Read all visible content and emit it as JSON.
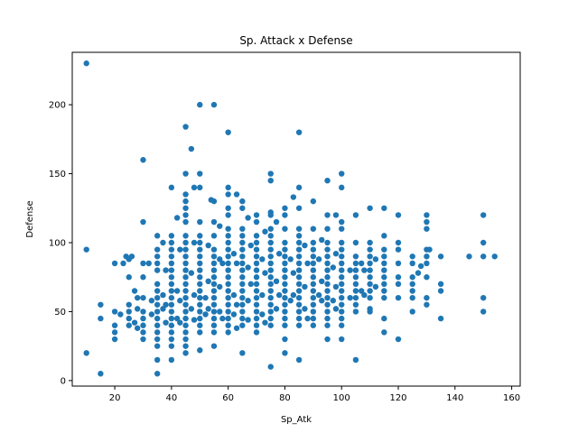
{
  "chart_data": {
    "type": "scatter",
    "title": "Sp. Attack x Defense",
    "xlabel": "Sp_Atk",
    "ylabel": "Defense",
    "xlim": [
      5,
      163
    ],
    "ylim": [
      -4,
      238
    ],
    "xticks": [
      20,
      40,
      60,
      80,
      100,
      120,
      140,
      160
    ],
    "yticks": [
      0,
      50,
      100,
      150,
      200
    ],
    "grid": false,
    "legend": "none",
    "color": "#1f77b4",
    "points": [
      [
        10,
        230
      ],
      [
        10,
        95
      ],
      [
        10,
        20
      ],
      [
        15,
        55
      ],
      [
        15,
        45
      ],
      [
        15,
        5
      ],
      [
        20,
        85
      ],
      [
        20,
        50
      ],
      [
        20,
        40
      ],
      [
        20,
        35
      ],
      [
        20,
        30
      ],
      [
        22,
        48
      ],
      [
        23,
        85
      ],
      [
        24,
        90
      ],
      [
        25,
        88
      ],
      [
        25,
        75
      ],
      [
        25,
        55
      ],
      [
        25,
        50
      ],
      [
        25,
        45
      ],
      [
        25,
        40
      ],
      [
        26,
        90
      ],
      [
        27,
        65
      ],
      [
        27,
        42
      ],
      [
        28,
        60
      ],
      [
        28,
        52
      ],
      [
        28,
        38
      ],
      [
        30,
        160
      ],
      [
        30,
        115
      ],
      [
        30,
        85
      ],
      [
        30,
        75
      ],
      [
        30,
        60
      ],
      [
        30,
        50
      ],
      [
        30,
        45
      ],
      [
        30,
        40
      ],
      [
        30,
        35
      ],
      [
        30,
        30
      ],
      [
        32,
        85
      ],
      [
        33,
        58
      ],
      [
        33,
        48
      ],
      [
        35,
        105
      ],
      [
        35,
        95
      ],
      [
        35,
        90
      ],
      [
        35,
        85
      ],
      [
        35,
        80
      ],
      [
        35,
        70
      ],
      [
        35,
        65
      ],
      [
        35,
        60
      ],
      [
        35,
        55
      ],
      [
        35,
        50
      ],
      [
        35,
        45
      ],
      [
        35,
        40
      ],
      [
        35,
        35
      ],
      [
        35,
        30
      ],
      [
        35,
        25
      ],
      [
        35,
        15
      ],
      [
        35,
        5
      ],
      [
        37,
        100
      ],
      [
        37,
        62
      ],
      [
        37,
        52
      ],
      [
        38,
        80
      ],
      [
        38,
        55
      ],
      [
        38,
        42
      ],
      [
        40,
        140
      ],
      [
        40,
        105
      ],
      [
        40,
        100
      ],
      [
        40,
        95
      ],
      [
        40,
        90
      ],
      [
        40,
        85
      ],
      [
        40,
        80
      ],
      [
        40,
        75
      ],
      [
        40,
        70
      ],
      [
        40,
        65
      ],
      [
        40,
        60
      ],
      [
        40,
        55
      ],
      [
        40,
        50
      ],
      [
        40,
        45
      ],
      [
        40,
        40
      ],
      [
        40,
        35
      ],
      [
        40,
        30
      ],
      [
        40,
        25
      ],
      [
        40,
        15
      ],
      [
        42,
        118
      ],
      [
        42,
        65
      ],
      [
        42,
        45
      ],
      [
        43,
        95
      ],
      [
        43,
        58
      ],
      [
        43,
        42
      ],
      [
        45,
        184
      ],
      [
        45,
        150
      ],
      [
        45,
        135
      ],
      [
        45,
        130
      ],
      [
        45,
        125
      ],
      [
        45,
        120
      ],
      [
        45,
        115
      ],
      [
        45,
        105
      ],
      [
        45,
        100
      ],
      [
        45,
        95
      ],
      [
        45,
        90
      ],
      [
        45,
        85
      ],
      [
        45,
        80
      ],
      [
        45,
        75
      ],
      [
        45,
        70
      ],
      [
        45,
        65
      ],
      [
        45,
        60
      ],
      [
        45,
        55
      ],
      [
        45,
        50
      ],
      [
        45,
        45
      ],
      [
        45,
        40
      ],
      [
        45,
        35
      ],
      [
        45,
        30
      ],
      [
        45,
        25
      ],
      [
        45,
        20
      ],
      [
        47,
        168
      ],
      [
        47,
        78
      ],
      [
        47,
        52
      ],
      [
        48,
        140
      ],
      [
        48,
        100
      ],
      [
        48,
        62
      ],
      [
        48,
        44
      ],
      [
        50,
        200
      ],
      [
        50,
        150
      ],
      [
        50,
        140
      ],
      [
        50,
        115
      ],
      [
        50,
        105
      ],
      [
        50,
        100
      ],
      [
        50,
        95
      ],
      [
        50,
        90
      ],
      [
        50,
        85
      ],
      [
        50,
        80
      ],
      [
        50,
        75
      ],
      [
        50,
        70
      ],
      [
        50,
        65
      ],
      [
        50,
        60
      ],
      [
        50,
        55
      ],
      [
        50,
        50
      ],
      [
        50,
        45
      ],
      [
        50,
        40
      ],
      [
        50,
        35
      ],
      [
        50,
        22
      ],
      [
        52,
        60
      ],
      [
        52,
        48
      ],
      [
        53,
        98
      ],
      [
        53,
        72
      ],
      [
        53,
        52
      ],
      [
        54,
        131
      ],
      [
        55,
        200
      ],
      [
        55,
        130
      ],
      [
        55,
        115
      ],
      [
        55,
        105
      ],
      [
        55,
        95
      ],
      [
        55,
        90
      ],
      [
        55,
        85
      ],
      [
        55,
        80
      ],
      [
        55,
        75
      ],
      [
        55,
        70
      ],
      [
        55,
        65
      ],
      [
        55,
        60
      ],
      [
        55,
        55
      ],
      [
        55,
        50
      ],
      [
        55,
        45
      ],
      [
        55,
        40
      ],
      [
        55,
        35
      ],
      [
        55,
        25
      ],
      [
        57,
        112
      ],
      [
        57,
        88
      ],
      [
        57,
        68
      ],
      [
        57,
        50
      ],
      [
        58,
        85
      ],
      [
        58,
        45
      ],
      [
        60,
        180
      ],
      [
        60,
        140
      ],
      [
        60,
        135
      ],
      [
        60,
        125
      ],
      [
        60,
        120
      ],
      [
        60,
        110
      ],
      [
        60,
        105
      ],
      [
        60,
        100
      ],
      [
        60,
        95
      ],
      [
        60,
        90
      ],
      [
        60,
        85
      ],
      [
        60,
        80
      ],
      [
        60,
        75
      ],
      [
        60,
        70
      ],
      [
        60,
        65
      ],
      [
        60,
        60
      ],
      [
        60,
        55
      ],
      [
        60,
        50
      ],
      [
        60,
        45
      ],
      [
        60,
        40
      ],
      [
        60,
        35
      ],
      [
        62,
        92
      ],
      [
        62,
        62
      ],
      [
        62,
        48
      ],
      [
        63,
        135
      ],
      [
        63,
        85
      ],
      [
        63,
        55
      ],
      [
        63,
        38
      ],
      [
        65,
        130
      ],
      [
        65,
        125
      ],
      [
        65,
        110
      ],
      [
        65,
        105
      ],
      [
        65,
        100
      ],
      [
        65,
        95
      ],
      [
        65,
        90
      ],
      [
        65,
        85
      ],
      [
        65,
        80
      ],
      [
        65,
        75
      ],
      [
        65,
        70
      ],
      [
        65,
        65
      ],
      [
        65,
        60
      ],
      [
        65,
        55
      ],
      [
        65,
        50
      ],
      [
        65,
        45
      ],
      [
        65,
        40
      ],
      [
        65,
        20
      ],
      [
        67,
        118
      ],
      [
        67,
        82
      ],
      [
        67,
        58
      ],
      [
        67,
        44
      ],
      [
        68,
        98
      ],
      [
        68,
        70
      ],
      [
        70,
        120
      ],
      [
        70,
        115
      ],
      [
        70,
        105
      ],
      [
        70,
        100
      ],
      [
        70,
        95
      ],
      [
        70,
        90
      ],
      [
        70,
        85
      ],
      [
        70,
        80
      ],
      [
        70,
        75
      ],
      [
        70,
        70
      ],
      [
        70,
        65
      ],
      [
        70,
        60
      ],
      [
        70,
        55
      ],
      [
        70,
        50
      ],
      [
        70,
        45
      ],
      [
        70,
        40
      ],
      [
        70,
        35
      ],
      [
        72,
        88
      ],
      [
        72,
        62
      ],
      [
        72,
        48
      ],
      [
        73,
        108
      ],
      [
        73,
        78
      ],
      [
        73,
        42
      ],
      [
        75,
        150
      ],
      [
        75,
        145
      ],
      [
        75,
        122
      ],
      [
        75,
        120
      ],
      [
        75,
        110
      ],
      [
        75,
        105
      ],
      [
        75,
        100
      ],
      [
        75,
        95
      ],
      [
        75,
        90
      ],
      [
        75,
        85
      ],
      [
        75,
        80
      ],
      [
        75,
        75
      ],
      [
        75,
        70
      ],
      [
        75,
        65
      ],
      [
        75,
        60
      ],
      [
        75,
        55
      ],
      [
        75,
        50
      ],
      [
        75,
        45
      ],
      [
        75,
        40
      ],
      [
        75,
        10
      ],
      [
        77,
        115
      ],
      [
        77,
        72
      ],
      [
        77,
        52
      ],
      [
        78,
        92
      ],
      [
        78,
        62
      ],
      [
        80,
        125
      ],
      [
        80,
        120
      ],
      [
        80,
        110
      ],
      [
        80,
        100
      ],
      [
        80,
        95
      ],
      [
        80,
        90
      ],
      [
        80,
        85
      ],
      [
        80,
        80
      ],
      [
        80,
        75
      ],
      [
        80,
        70
      ],
      [
        80,
        65
      ],
      [
        80,
        60
      ],
      [
        80,
        55
      ],
      [
        80,
        50
      ],
      [
        80,
        45
      ],
      [
        80,
        40
      ],
      [
        80,
        30
      ],
      [
        80,
        20
      ],
      [
        82,
        88
      ],
      [
        82,
        58
      ],
      [
        83,
        133
      ],
      [
        83,
        78
      ],
      [
        83,
        62
      ],
      [
        85,
        180
      ],
      [
        85,
        140
      ],
      [
        85,
        125
      ],
      [
        85,
        110
      ],
      [
        85,
        105
      ],
      [
        85,
        100
      ],
      [
        85,
        95
      ],
      [
        85,
        90
      ],
      [
        85,
        85
      ],
      [
        85,
        80
      ],
      [
        85,
        75
      ],
      [
        85,
        70
      ],
      [
        85,
        65
      ],
      [
        85,
        60
      ],
      [
        85,
        55
      ],
      [
        85,
        50
      ],
      [
        85,
        45
      ],
      [
        85,
        40
      ],
      [
        85,
        15
      ],
      [
        87,
        98
      ],
      [
        87,
        68
      ],
      [
        87,
        52
      ],
      [
        88,
        85
      ],
      [
        88,
        45
      ],
      [
        90,
        130
      ],
      [
        90,
        110
      ],
      [
        90,
        100
      ],
      [
        90,
        95
      ],
      [
        90,
        90
      ],
      [
        90,
        85
      ],
      [
        90,
        80
      ],
      [
        90,
        75
      ],
      [
        90,
        70
      ],
      [
        90,
        65
      ],
      [
        90,
        60
      ],
      [
        90,
        55
      ],
      [
        90,
        50
      ],
      [
        90,
        45
      ],
      [
        90,
        40
      ],
      [
        92,
        88
      ],
      [
        92,
        62
      ],
      [
        93,
        102
      ],
      [
        93,
        72
      ],
      [
        93,
        58
      ],
      [
        95,
        145
      ],
      [
        95,
        120
      ],
      [
        95,
        110
      ],
      [
        95,
        100
      ],
      [
        95,
        95
      ],
      [
        95,
        90
      ],
      [
        95,
        85
      ],
      [
        95,
        80
      ],
      [
        95,
        75
      ],
      [
        95,
        70
      ],
      [
        95,
        65
      ],
      [
        95,
        60
      ],
      [
        95,
        55
      ],
      [
        95,
        50
      ],
      [
        95,
        45
      ],
      [
        95,
        40
      ],
      [
        95,
        30
      ],
      [
        97,
        82
      ],
      [
        97,
        58
      ],
      [
        98,
        120
      ],
      [
        98,
        92
      ],
      [
        98,
        68
      ],
      [
        98,
        52
      ],
      [
        100,
        150
      ],
      [
        100,
        140
      ],
      [
        100,
        115
      ],
      [
        100,
        110
      ],
      [
        100,
        100
      ],
      [
        100,
        95
      ],
      [
        100,
        90
      ],
      [
        100,
        85
      ],
      [
        100,
        80
      ],
      [
        100,
        75
      ],
      [
        100,
        70
      ],
      [
        100,
        65
      ],
      [
        100,
        60
      ],
      [
        100,
        55
      ],
      [
        100,
        50
      ],
      [
        100,
        45
      ],
      [
        100,
        40
      ],
      [
        100,
        30
      ],
      [
        103,
        80
      ],
      [
        103,
        60
      ],
      [
        105,
        120
      ],
      [
        105,
        100
      ],
      [
        105,
        90
      ],
      [
        105,
        85
      ],
      [
        105,
        80
      ],
      [
        105,
        75
      ],
      [
        105,
        70
      ],
      [
        105,
        65
      ],
      [
        105,
        60
      ],
      [
        105,
        55
      ],
      [
        105,
        50
      ],
      [
        105,
        15
      ],
      [
        107,
        85
      ],
      [
        107,
        65
      ],
      [
        108,
        80
      ],
      [
        108,
        62
      ],
      [
        110,
        125
      ],
      [
        110,
        100
      ],
      [
        110,
        95
      ],
      [
        110,
        90
      ],
      [
        110,
        85
      ],
      [
        110,
        80
      ],
      [
        110,
        75
      ],
      [
        110,
        70
      ],
      [
        110,
        65
      ],
      [
        110,
        60
      ],
      [
        110,
        52
      ],
      [
        110,
        50
      ],
      [
        112,
        88
      ],
      [
        112,
        68
      ],
      [
        115,
        125
      ],
      [
        115,
        105
      ],
      [
        115,
        95
      ],
      [
        115,
        90
      ],
      [
        115,
        85
      ],
      [
        115,
        80
      ],
      [
        115,
        75
      ],
      [
        115,
        70
      ],
      [
        115,
        65
      ],
      [
        115,
        60
      ],
      [
        115,
        45
      ],
      [
        115,
        35
      ],
      [
        120,
        120
      ],
      [
        120,
        100
      ],
      [
        120,
        95
      ],
      [
        120,
        85
      ],
      [
        120,
        75
      ],
      [
        120,
        70
      ],
      [
        120,
        60
      ],
      [
        120,
        30
      ],
      [
        125,
        90
      ],
      [
        125,
        85
      ],
      [
        125,
        75
      ],
      [
        125,
        70
      ],
      [
        125,
        65
      ],
      [
        125,
        60
      ],
      [
        125,
        50
      ],
      [
        127,
        78
      ],
      [
        128,
        83
      ],
      [
        130,
        120
      ],
      [
        130,
        115
      ],
      [
        130,
        110
      ],
      [
        130,
        95
      ],
      [
        130,
        90
      ],
      [
        130,
        85
      ],
      [
        130,
        75
      ],
      [
        130,
        60
      ],
      [
        130,
        55
      ],
      [
        131,
        95
      ],
      [
        135,
        90
      ],
      [
        135,
        70
      ],
      [
        135,
        65
      ],
      [
        135,
        45
      ],
      [
        145,
        90
      ],
      [
        150,
        120
      ],
      [
        150,
        100
      ],
      [
        150,
        90
      ],
      [
        150,
        60
      ],
      [
        150,
        50
      ],
      [
        154,
        90
      ]
    ]
  }
}
